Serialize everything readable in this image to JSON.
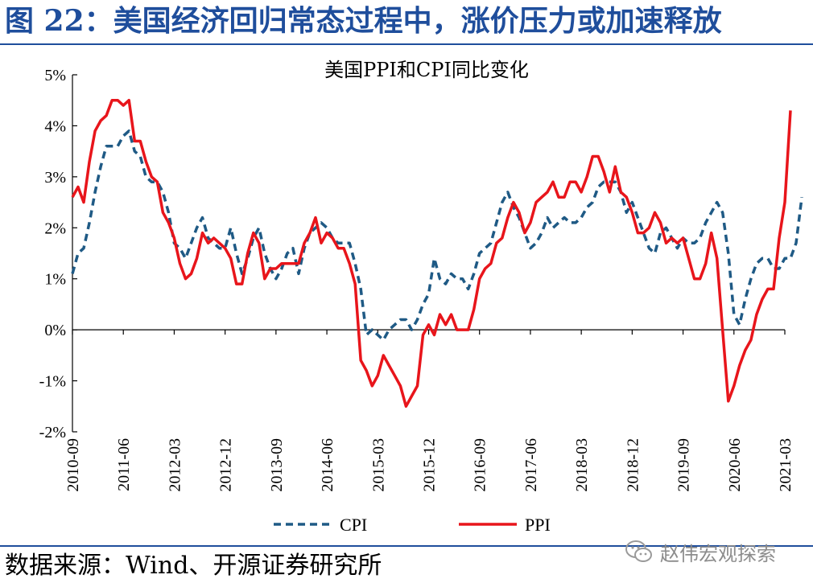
{
  "figure_title": "图 22：美国经济回归常态过程中，涨价压力或加速释放",
  "source": "数据来源：Wind、开源证券研究所",
  "watermark": "赵伟宏观探索",
  "icon": "wechat-icon",
  "colors": {
    "title": "#1f4e9c",
    "cpi": "#1f5a85",
    "ppi": "#e8151b",
    "watermark": "#8c8c8c"
  },
  "chart_data": {
    "type": "line",
    "title": "美国PPI和CPI同比变化",
    "xlabel": "",
    "ylabel": "",
    "ylim": [
      -2,
      5
    ],
    "yticks": [
      "-2%",
      "-1%",
      "0%",
      "1%",
      "2%",
      "3%",
      "4%",
      "5%"
    ],
    "xticks": [
      "2010-09",
      "2011-06",
      "2012-03",
      "2012-12",
      "2013-09",
      "2014-06",
      "2015-03",
      "2015-12",
      "2016-09",
      "2017-06",
      "2018-03",
      "2018-12",
      "2019-09",
      "2020-06",
      "2021-03"
    ],
    "x_start": "2010-09",
    "x_end": "2021-03",
    "grid": false,
    "legend": "bottom",
    "series": [
      {
        "name": "CPI",
        "style": "dashed",
        "values": [
          1.1,
          1.5,
          1.6,
          2.1,
          2.7,
          3.2,
          3.6,
          3.6,
          3.6,
          3.8,
          3.9,
          3.5,
          3.4,
          3.0,
          2.9,
          2.9,
          2.7,
          2.3,
          1.7,
          1.6,
          1.4,
          1.7,
          2.0,
          2.2,
          1.8,
          1.7,
          1.6,
          1.6,
          2.0,
          1.5,
          1.1,
          1.4,
          1.8,
          2.0,
          1.5,
          1.2,
          1.0,
          1.2,
          1.5,
          1.6,
          1.1,
          1.6,
          1.9,
          2.0,
          2.1,
          2.0,
          1.8,
          1.7,
          1.7,
          1.7,
          1.3,
          0.8,
          -0.1,
          0.0,
          -0.1,
          -0.2,
          0.0,
          0.1,
          0.2,
          0.2,
          0.0,
          0.2,
          0.5,
          0.7,
          1.4,
          1.0,
          0.9,
          1.1,
          1.0,
          1.0,
          0.8,
          1.1,
          1.5,
          1.6,
          1.7,
          2.1,
          2.5,
          2.7,
          2.4,
          2.2,
          1.9,
          1.6,
          1.7,
          1.9,
          2.2,
          2.0,
          2.1,
          2.2,
          2.1,
          2.1,
          2.2,
          2.4,
          2.5,
          2.8,
          2.9,
          2.9,
          2.9,
          2.7,
          2.3,
          2.5,
          2.2,
          1.9,
          1.6,
          1.5,
          1.9,
          2.0,
          1.8,
          1.6,
          1.8,
          1.7,
          1.7,
          1.8,
          2.1,
          2.3,
          2.5,
          2.3,
          1.5,
          0.3,
          0.1,
          0.6,
          1.0,
          1.3,
          1.4,
          1.4,
          1.2,
          1.2,
          1.4,
          1.4,
          1.7,
          2.6
        ]
      },
      {
        "name": "PPI",
        "style": "solid",
        "values": [
          2.6,
          2.8,
          2.5,
          3.3,
          3.9,
          4.1,
          4.2,
          4.5,
          4.5,
          4.4,
          4.5,
          3.7,
          3.7,
          3.3,
          3.0,
          2.9,
          2.3,
          2.1,
          1.8,
          1.3,
          1.0,
          1.1,
          1.4,
          1.9,
          1.7,
          1.8,
          1.7,
          1.6,
          1.4,
          0.9,
          0.9,
          1.5,
          1.9,
          1.7,
          1.0,
          1.2,
          1.2,
          1.3,
          1.3,
          1.3,
          1.3,
          1.7,
          1.9,
          2.2,
          1.7,
          1.9,
          1.8,
          1.6,
          1.6,
          1.3,
          0.9,
          -0.6,
          -0.8,
          -1.1,
          -0.9,
          -0.5,
          -0.7,
          -0.9,
          -1.1,
          -1.5,
          -1.3,
          -1.1,
          -0.1,
          0.1,
          -0.1,
          0.3,
          0.1,
          0.3,
          0.0,
          0.0,
          0.0,
          0.4,
          1.0,
          1.2,
          1.3,
          1.7,
          1.8,
          2.2,
          2.5,
          2.3,
          1.9,
          2.1,
          2.5,
          2.6,
          2.7,
          2.9,
          2.6,
          2.6,
          2.9,
          2.9,
          2.7,
          3.0,
          3.4,
          3.4,
          3.1,
          2.7,
          3.2,
          2.7,
          2.6,
          2.3,
          1.9,
          1.9,
          2.0,
          2.3,
          2.1,
          1.7,
          1.8,
          1.7,
          1.8,
          1.4,
          1.0,
          1.0,
          1.3,
          1.9,
          1.4,
          0.0,
          -1.4,
          -1.1,
          -0.7,
          -0.4,
          -0.2,
          0.3,
          0.6,
          0.8,
          0.8,
          1.8,
          2.5,
          4.3
        ]
      }
    ]
  }
}
